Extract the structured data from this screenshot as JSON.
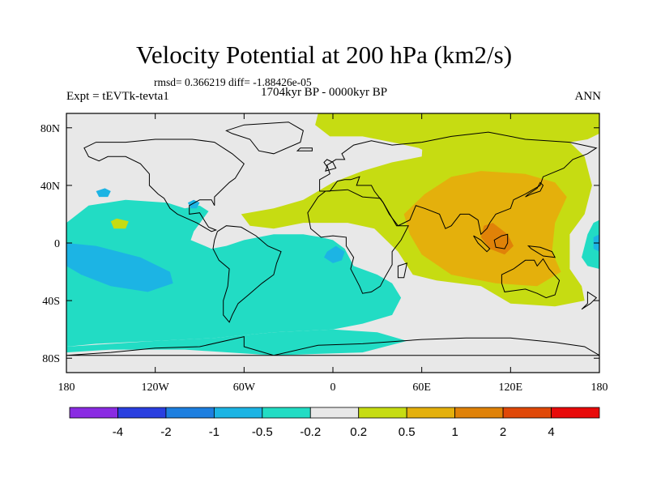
{
  "title": "Velocity Potential at 200 hPa (km2/s)",
  "stats": "rmsd= 0.366219 diff= -1.88426e-05",
  "period": "1704kyr BP - 0000kyr BP",
  "experiment": "Expt = tEVTk-tevta1",
  "season": "ANN",
  "map": {
    "projection": "cylindrical equidistant",
    "lon_range": [
      -180,
      180
    ],
    "lat_range": [
      -90,
      90
    ],
    "x_ticks": [
      {
        "lon": -180,
        "label": "180"
      },
      {
        "lon": -120,
        "label": "120W"
      },
      {
        "lon": -60,
        "label": "60W"
      },
      {
        "lon": 0,
        "label": "0"
      },
      {
        "lon": 60,
        "label": "60E"
      },
      {
        "lon": 120,
        "label": "120E"
      },
      {
        "lon": 180,
        "label": "180"
      }
    ],
    "y_ticks": [
      {
        "lat": 80,
        "label": "80N"
      },
      {
        "lat": 40,
        "label": "40N"
      },
      {
        "lat": 0,
        "label": "0"
      },
      {
        "lat": -40,
        "label": "40S"
      },
      {
        "lat": -80,
        "label": "80S"
      }
    ]
  },
  "colorbar": {
    "colors": [
      "#8a2be2",
      "#2a3fe0",
      "#1e7fe0",
      "#1cb4e4",
      "#22dcc4",
      "#e8e8e8",
      "#c6dc12",
      "#e4b00c",
      "#e08208",
      "#e04808",
      "#e80a0a"
    ],
    "labels": [
      "-4",
      "-2",
      "-1",
      "-0.5",
      "-0.2",
      "0.2",
      "0.5",
      "1",
      "2",
      "4"
    ]
  },
  "field_colors": {
    "neutral": "#e8e8e8",
    "neg_weak": "#22dcc4",
    "neg_mid": "#1cb4e4",
    "pos_weak": "#c6dc12",
    "pos_mid": "#e4b00c",
    "pos_strong": "#e08208"
  }
}
